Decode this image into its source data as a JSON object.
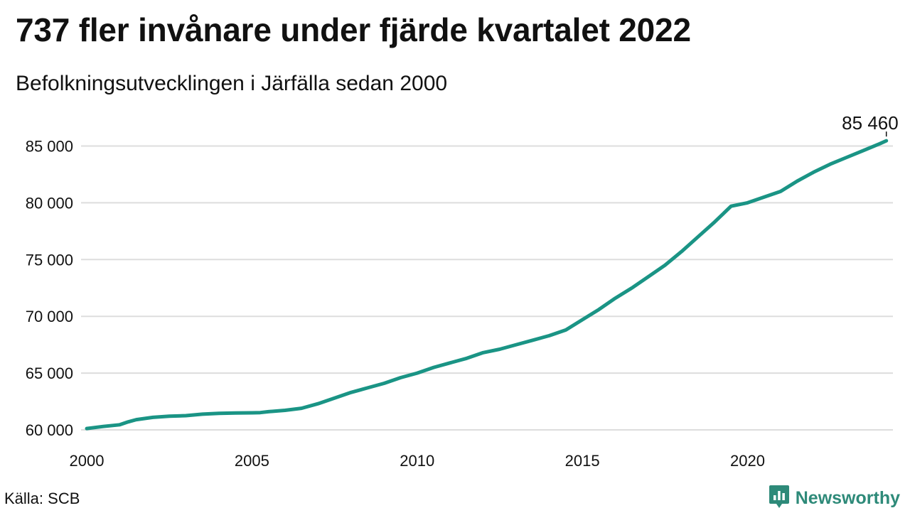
{
  "header": {
    "title": "737 fler invånare under fjärde kvartalet 2022",
    "subtitle": "Befolkningsutvecklingen i Järfälla sedan 2000"
  },
  "footer": {
    "source": "Källa: SCB",
    "brand": "Newsworthy"
  },
  "colors": {
    "line": "#1a9485",
    "grid": "#dddddd",
    "text": "#111111",
    "brand": "#2e8a79"
  },
  "icons": {
    "brand": "bar-chart-speech-bubble-icon"
  },
  "chart_data": {
    "type": "line",
    "title": "737 fler invånare under fjärde kvartalet 2022",
    "subtitle": "Befolkningsutvecklingen i Järfälla sedan 2000",
    "xlabel": "",
    "ylabel": "",
    "x_ticks": [
      2000,
      2005,
      2010,
      2015,
      2020
    ],
    "x_tick_labels": [
      "2000",
      "2005",
      "2010",
      "2015",
      "2020"
    ],
    "y_ticks": [
      60000,
      65000,
      70000,
      75000,
      80000,
      85000
    ],
    "y_tick_labels": [
      "60 000",
      "65 000",
      "70 000",
      "75 000",
      "80 000",
      "85 000"
    ],
    "xlim": [
      2000,
      2024.4
    ],
    "ylim": [
      60000,
      85460
    ],
    "grid": "horizontal",
    "legend": "none",
    "end_label": "85 460",
    "series": [
      {
        "x": [
          2000.0,
          2000.5,
          2001.0,
          2001.25,
          2001.5,
          2002.0,
          2002.5,
          2003.0,
          2003.5,
          2004.0,
          2004.5,
          2005.0,
          2005.25,
          2005.5,
          2006.0,
          2006.5,
          2007.0,
          2007.5,
          2008.0,
          2008.5,
          2009.0,
          2009.5,
          2010.0,
          2010.5,
          2011.0,
          2011.5,
          2012.0,
          2012.5,
          2013.0,
          2013.5,
          2014.0,
          2014.5,
          2015.0,
          2015.5,
          2016.0,
          2016.5,
          2017.0,
          2017.5,
          2018.0,
          2018.5,
          2019.0,
          2019.5,
          2020.0,
          2020.5,
          2021.0,
          2021.5,
          2022.0,
          2022.5,
          2023.0,
          2023.5,
          2024.0,
          2024.2
        ],
        "values": [
          60120,
          60300,
          60450,
          60700,
          60900,
          61100,
          61200,
          61250,
          61380,
          61450,
          61480,
          61500,
          61520,
          61600,
          61720,
          61900,
          62300,
          62800,
          63300,
          63700,
          64100,
          64600,
          65000,
          65500,
          65900,
          66300,
          66800,
          67100,
          67500,
          67900,
          68300,
          68800,
          69700,
          70600,
          71600,
          72500,
          73500,
          74500,
          75700,
          77000,
          78300,
          79700,
          80000,
          80500,
          81000,
          81900,
          82700,
          83400,
          84000,
          84600,
          85200,
          85460
        ]
      }
    ]
  }
}
